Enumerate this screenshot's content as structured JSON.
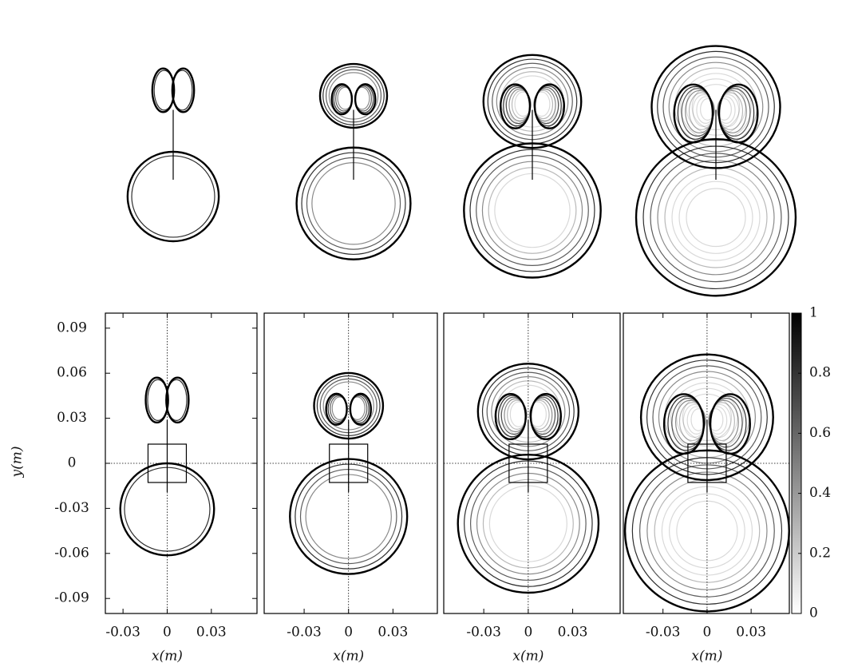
{
  "figure": {
    "panels": [
      {
        "xlim": [
          -0.042,
          0.061
        ],
        "xticks": [
          -0.03,
          0,
          0.03
        ],
        "xlabel": "x(m)"
      },
      {
        "xlim": [
          -0.057,
          0.06
        ],
        "xticks": [
          -0.03,
          0,
          0.03
        ],
        "xlabel": "x(m)"
      },
      {
        "xlim": [
          -0.057,
          0.062
        ],
        "xticks": [
          -0.03,
          0,
          0.03
        ],
        "xlabel": "x(m)"
      },
      {
        "xlim": [
          -0.057,
          0.056
        ],
        "xticks": [
          -0.03,
          0,
          0.03
        ],
        "xlabel": "x(m)"
      }
    ],
    "ylim": [
      -0.1,
      0.1
    ],
    "yticks": [
      -0.09,
      -0.06,
      -0.03,
      0,
      0.03,
      0.06,
      0.09
    ],
    "ylabel": "y(m)",
    "colorbar": {
      "lim": [
        0,
        1
      ],
      "ticks": [
        0,
        0.2,
        0.4,
        0.6,
        0.8,
        1
      ]
    }
  }
}
